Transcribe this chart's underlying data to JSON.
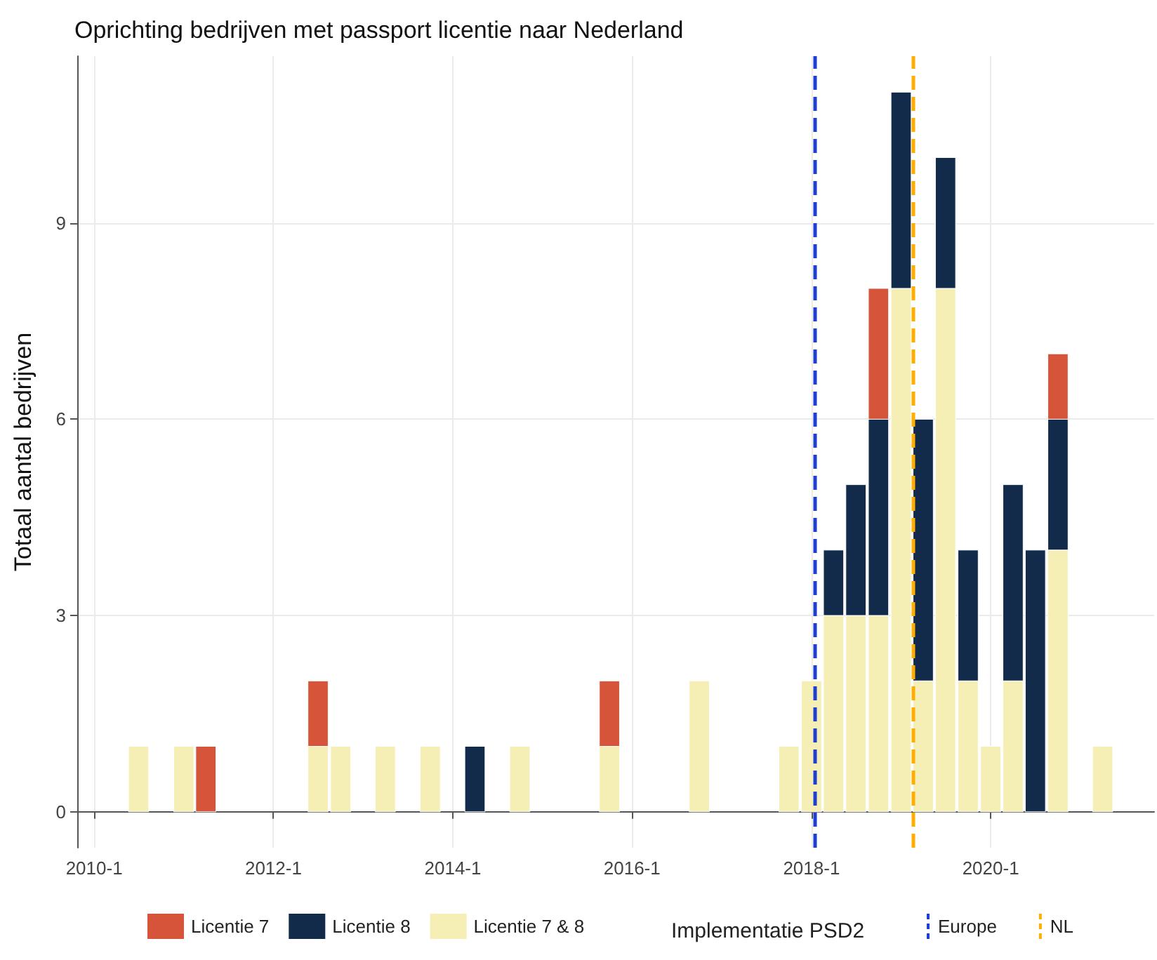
{
  "chart_data": {
    "type": "bar",
    "title": "Oprichting bedrijven met passport licentie naar Nederland",
    "ylabel": "Totaal aantal bedrijven",
    "legend_title": "Implementatie PSD2",
    "stacked": true,
    "x": [
      "2010-07",
      "2011-01",
      "2011-04",
      "2012-07",
      "2012-10",
      "2013-04",
      "2013-10",
      "2014-04",
      "2014-10",
      "2015-10",
      "2016-10",
      "2017-10",
      "2018-01",
      "2018-04",
      "2018-07",
      "2018-10",
      "2019-01",
      "2019-04",
      "2019-07",
      "2019-10",
      "2020-01",
      "2020-04",
      "2020-07",
      "2020-10",
      "2021-04"
    ],
    "series": [
      {
        "name": "Licentie 7 & 8",
        "color": "#f5efb5",
        "values": [
          1,
          1,
          null,
          1,
          1,
          1,
          1,
          null,
          1,
          1,
          2,
          1,
          2,
          3,
          3,
          3,
          8,
          2,
          8,
          2,
          1,
          2,
          null,
          4,
          1
        ]
      },
      {
        "name": "Licentie 8",
        "color": "#132b4a",
        "values": [
          null,
          null,
          null,
          null,
          null,
          null,
          null,
          1,
          null,
          null,
          null,
          null,
          null,
          1,
          2,
          3,
          3,
          4,
          2,
          2,
          null,
          3,
          4,
          2,
          null
        ]
      },
      {
        "name": "Licentie 7",
        "color": "#d6543a",
        "values": [
          null,
          null,
          1,
          1,
          null,
          null,
          null,
          null,
          null,
          1,
          null,
          null,
          null,
          null,
          null,
          2,
          null,
          null,
          null,
          null,
          null,
          null,
          null,
          1,
          null
        ]
      }
    ],
    "xlim": [
      "2009-10-24",
      "2021-10-28"
    ],
    "xticks": [
      {
        "value": "2010-01",
        "label": "2010-1"
      },
      {
        "value": "2012-01",
        "label": "2012-1"
      },
      {
        "value": "2014-01",
        "label": "2014-1"
      },
      {
        "value": "2016-01",
        "label": "2016-1"
      },
      {
        "value": "2018-01",
        "label": "2018-1"
      },
      {
        "value": "2020-01",
        "label": "2020-1"
      }
    ],
    "ylim": [
      -0.55,
      11.55
    ],
    "yticks": [
      0,
      3,
      6,
      9
    ],
    "ref_lines": [
      {
        "axis": "x",
        "value": "2018-01-13",
        "label": "Europe",
        "color": "#1f3fd0",
        "line_style": "dashed"
      },
      {
        "axis": "x",
        "value": "2019-02-19",
        "label": "NL",
        "color": "#ffad00",
        "line_style": "dashed"
      }
    ],
    "grid": true,
    "legend": "bottom"
  }
}
